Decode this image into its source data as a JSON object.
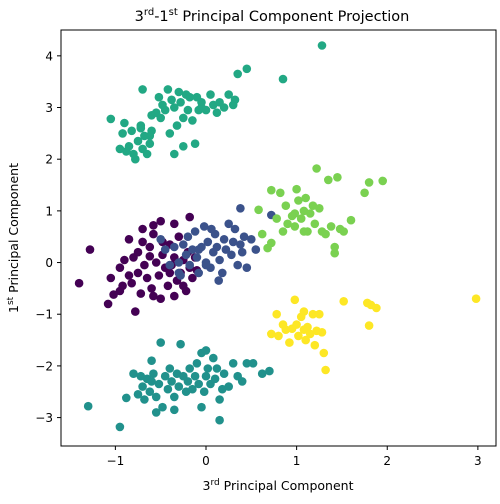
{
  "chart_data": {
    "type": "scatter",
    "title_base1": "3",
    "title_sup1": "rd",
    "title_mid": "-1",
    "title_sup2": "st",
    "title_rest": " Principal Component Projection",
    "xlabel_base": "3",
    "xlabel_sup": "rd",
    "xlabel_rest": " Principal Component",
    "ylabel_base": "1",
    "ylabel_sup": "st",
    "ylabel_rest": " Principal Component",
    "xlim": [
      -1.6,
      3.2
    ],
    "ylim": [
      -3.55,
      4.5
    ],
    "xticks": [
      -1,
      0,
      1,
      2,
      3
    ],
    "xtick_labels": [
      "−1",
      "0",
      "1",
      "2",
      "3"
    ],
    "yticks": [
      -3,
      -2,
      -1,
      0,
      1,
      2,
      3,
      4
    ],
    "ytick_labels": [
      "−3",
      "−2",
      "−1",
      "0",
      "1",
      "2",
      "3",
      "4"
    ],
    "grid": false,
    "series": [
      {
        "color": "#440154",
        "points": [
          [
            -1.28,
            0.25
          ],
          [
            -1.4,
            -0.4
          ],
          [
            -1.05,
            -0.3
          ],
          [
            -0.95,
            -0.55
          ],
          [
            -0.95,
            -0.1
          ],
          [
            -0.9,
            0.05
          ],
          [
            -0.85,
            -0.25
          ],
          [
            -0.82,
            -0.4
          ],
          [
            -0.8,
            0.1
          ],
          [
            -0.75,
            -0.2
          ],
          [
            -0.72,
            -0.6
          ],
          [
            -0.7,
            0.4
          ],
          [
            -0.68,
            -0.05
          ],
          [
            -0.65,
            -0.3
          ],
          [
            -0.62,
            0.3
          ],
          [
            -0.6,
            -0.5
          ],
          [
            -0.58,
            0.55
          ],
          [
            -0.55,
            0.0
          ],
          [
            -0.52,
            -0.25
          ],
          [
            -0.5,
            0.8
          ],
          [
            -0.48,
            0.15
          ],
          [
            -0.45,
            -0.1
          ],
          [
            -0.42,
            -0.45
          ],
          [
            -0.4,
            0.35
          ],
          [
            -0.38,
            -0.05
          ],
          [
            -0.35,
            0.1
          ],
          [
            -0.32,
            -0.35
          ],
          [
            -0.3,
            0.5
          ],
          [
            -0.28,
            -0.2
          ],
          [
            -0.25,
            0.05
          ],
          [
            -0.22,
            -0.55
          ],
          [
            -0.2,
            0.2
          ],
          [
            -0.18,
            -0.1
          ],
          [
            -0.15,
            -0.3
          ],
          [
            -0.12,
            0.1
          ],
          [
            -0.1,
            -0.15
          ],
          [
            -0.35,
            0.75
          ],
          [
            -0.18,
            0.88
          ],
          [
            -0.78,
            -0.95
          ],
          [
            -0.7,
            0.65
          ],
          [
            -0.58,
            -0.65
          ],
          [
            -0.92,
            -0.45
          ],
          [
            -1.08,
            -0.8
          ],
          [
            -0.5,
            -0.7
          ],
          [
            -0.35,
            -0.65
          ],
          [
            -0.62,
            0.12
          ],
          [
            -0.75,
            0.2
          ],
          [
            -0.48,
            0.4
          ],
          [
            -0.85,
            0.45
          ],
          [
            -0.25,
            -0.45
          ],
          [
            -0.4,
            -0.2
          ],
          [
            -0.58,
            0.72
          ],
          [
            -1.02,
            -0.62
          ]
        ]
      },
      {
        "color": "#3b528b",
        "points": [
          [
            -0.45,
            0.25
          ],
          [
            -0.4,
            -0.05
          ],
          [
            -0.35,
            0.3
          ],
          [
            -0.3,
            0.0
          ],
          [
            -0.28,
            -0.25
          ],
          [
            -0.25,
            0.35
          ],
          [
            -0.22,
            0.15
          ],
          [
            -0.2,
            0.5
          ],
          [
            -0.18,
            -0.05
          ],
          [
            -0.15,
            0.25
          ],
          [
            -0.12,
            0.6
          ],
          [
            -0.1,
            0.1
          ],
          [
            -0.08,
            -0.2
          ],
          [
            -0.05,
            0.3
          ],
          [
            -0.02,
            0.7
          ],
          [
            0.0,
            0.0
          ],
          [
            0.02,
            0.4
          ],
          [
            0.05,
            -0.1
          ],
          [
            0.08,
            0.2
          ],
          [
            0.1,
            0.55
          ],
          [
            0.12,
            0.3
          ],
          [
            0.15,
            0.05
          ],
          [
            0.18,
            -0.2
          ],
          [
            0.2,
            0.45
          ],
          [
            0.22,
            0.25
          ],
          [
            0.25,
            0.75
          ],
          [
            0.28,
            0.15
          ],
          [
            0.3,
            0.4
          ],
          [
            0.32,
            0.65
          ],
          [
            0.35,
            -0.05
          ],
          [
            0.38,
            0.35
          ],
          [
            0.4,
            0.2
          ],
          [
            0.42,
            0.5
          ],
          [
            0.45,
            -0.1
          ],
          [
            0.5,
            0.45
          ],
          [
            0.55,
            0.25
          ],
          [
            0.38,
            1.05
          ],
          [
            0.72,
            0.92
          ],
          [
            -0.3,
            -0.2
          ],
          [
            -0.5,
            0.45
          ],
          [
            0.0,
            -0.05
          ],
          [
            0.06,
            0.65
          ],
          [
            -0.08,
            0.25
          ],
          [
            0.14,
            -0.35
          ]
        ]
      },
      {
        "color": "#21918c",
        "points": [
          [
            -1.3,
            -2.78
          ],
          [
            -0.95,
            -3.18
          ],
          [
            -0.8,
            -2.15
          ],
          [
            -0.75,
            -2.55
          ],
          [
            -0.72,
            -2.2
          ],
          [
            -0.7,
            -2.4
          ],
          [
            -0.68,
            -2.65
          ],
          [
            -0.65,
            -2.25
          ],
          [
            -0.62,
            -2.5
          ],
          [
            -0.6,
            -2.3
          ],
          [
            -0.58,
            -2.15
          ],
          [
            -0.55,
            -2.6
          ],
          [
            -0.52,
            -2.35
          ],
          [
            -0.5,
            -1.55
          ],
          [
            -0.48,
            -2.8
          ],
          [
            -0.45,
            -2.2
          ],
          [
            -0.42,
            -2.45
          ],
          [
            -0.4,
            -2.05
          ],
          [
            -0.38,
            -2.3
          ],
          [
            -0.35,
            -2.6
          ],
          [
            -0.32,
            -2.15
          ],
          [
            -0.3,
            -2.4
          ],
          [
            -0.28,
            -1.58
          ],
          [
            -0.25,
            -2.2
          ],
          [
            -0.22,
            -2.5
          ],
          [
            -0.2,
            -2.3
          ],
          [
            -0.18,
            -2.05
          ],
          [
            -0.15,
            -2.45
          ],
          [
            -0.12,
            -2.2
          ],
          [
            -0.1,
            -1.95
          ],
          [
            -0.08,
            -2.35
          ],
          [
            -0.05,
            -1.75
          ],
          [
            -0.02,
            -2.5
          ],
          [
            0.0,
            -2.2
          ],
          [
            0.02,
            -2.05
          ],
          [
            0.05,
            -2.35
          ],
          [
            0.08,
            -1.85
          ],
          [
            0.1,
            -2.25
          ],
          [
            0.12,
            -2.05
          ],
          [
            0.15,
            -2.65
          ],
          [
            0.18,
            -2.45
          ],
          [
            0.2,
            -2.15
          ],
          [
            0.25,
            -2.4
          ],
          [
            0.3,
            -1.95
          ],
          [
            0.35,
            -2.2
          ],
          [
            0.4,
            -2.3
          ],
          [
            0.45,
            -1.95
          ],
          [
            0.52,
            -1.95
          ],
          [
            0.62,
            -2.15
          ],
          [
            0.7,
            -2.1
          ],
          [
            0.15,
            -3.05
          ],
          [
            -0.05,
            -2.8
          ],
          [
            -0.55,
            -2.9
          ],
          [
            -0.35,
            -2.85
          ],
          [
            -0.88,
            -2.62
          ],
          [
            -0.6,
            -1.9
          ],
          [
            0.0,
            -1.7
          ]
        ]
      },
      {
        "color": "#7ad151",
        "points": [
          [
            0.58,
            1.02
          ],
          [
            0.72,
            1.4
          ],
          [
            0.82,
            1.35
          ],
          [
            0.88,
            1.1
          ],
          [
            0.9,
            0.75
          ],
          [
            0.95,
            0.9
          ],
          [
            0.98,
            0.7
          ],
          [
            1.0,
            1.42
          ],
          [
            1.02,
            1.2
          ],
          [
            1.05,
            0.85
          ],
          [
            1.08,
            1.0
          ],
          [
            1.1,
            1.25
          ],
          [
            1.12,
            0.6
          ],
          [
            1.15,
            0.95
          ],
          [
            1.18,
            1.1
          ],
          [
            1.2,
            0.75
          ],
          [
            1.22,
            1.82
          ],
          [
            1.25,
            1.05
          ],
          [
            1.28,
            0.6
          ],
          [
            1.32,
            0.55
          ],
          [
            1.35,
            1.6
          ],
          [
            1.38,
            0.7
          ],
          [
            1.42,
            0.3
          ],
          [
            1.45,
            1.65
          ],
          [
            1.48,
            0.65
          ],
          [
            1.52,
            0.6
          ],
          [
            1.6,
            0.82
          ],
          [
            1.75,
            1.35
          ],
          [
            1.8,
            1.55
          ],
          [
            1.95,
            1.58
          ],
          [
            0.68,
            0.28
          ],
          [
            0.72,
            0.38
          ],
          [
            0.85,
            0.6
          ],
          [
            0.62,
            0.55
          ],
          [
            0.98,
            0.95
          ],
          [
            0.78,
            0.85
          ],
          [
            1.42,
            0.18
          ],
          [
            1.08,
            0.6
          ]
        ]
      },
      {
        "color": "#fde725",
        "points": [
          [
            0.78,
            -1.0
          ],
          [
            0.8,
            -1.42
          ],
          [
            0.85,
            -1.2
          ],
          [
            0.88,
            -1.3
          ],
          [
            0.92,
            -1.55
          ],
          [
            0.95,
            -1.28
          ],
          [
            0.98,
            -0.72
          ],
          [
            1.0,
            -1.2
          ],
          [
            1.02,
            -1.42
          ],
          [
            1.05,
            -1.05
          ],
          [
            1.08,
            -1.3
          ],
          [
            1.1,
            -1.5
          ],
          [
            1.12,
            -1.25
          ],
          [
            1.15,
            -1.38
          ],
          [
            1.18,
            -1.0
          ],
          [
            1.2,
            -1.6
          ],
          [
            1.22,
            -1.32
          ],
          [
            1.25,
            -1.0
          ],
          [
            1.28,
            -1.35
          ],
          [
            1.3,
            -1.75
          ],
          [
            1.32,
            -2.08
          ],
          [
            1.52,
            -0.75
          ],
          [
            1.78,
            -0.78
          ],
          [
            1.8,
            -1.22
          ],
          [
            1.82,
            -0.82
          ],
          [
            1.88,
            -0.88
          ],
          [
            2.98,
            -0.7
          ],
          [
            0.72,
            -1.38
          ],
          [
            1.08,
            -0.95
          ]
        ]
      },
      {
        "color": "#22a884",
        "points": [
          [
            -1.05,
            2.78
          ],
          [
            -0.95,
            2.2
          ],
          [
            -0.92,
            2.5
          ],
          [
            -0.88,
            2.15
          ],
          [
            -0.85,
            2.25
          ],
          [
            -0.82,
            2.55
          ],
          [
            -0.8,
            2.1
          ],
          [
            -0.78,
            2.0
          ],
          [
            -0.75,
            2.35
          ],
          [
            -0.72,
            2.65
          ],
          [
            -0.7,
            2.2
          ],
          [
            -0.68,
            2.45
          ],
          [
            -0.65,
            2.1
          ],
          [
            -0.62,
            2.3
          ],
          [
            -0.6,
            2.55
          ],
          [
            -0.55,
            2.9
          ],
          [
            -0.52,
            3.2
          ],
          [
            -0.5,
            2.8
          ],
          [
            -0.48,
            3.05
          ],
          [
            -0.45,
            2.95
          ],
          [
            -0.42,
            3.35
          ],
          [
            -0.4,
            2.5
          ],
          [
            -0.38,
            3.15
          ],
          [
            -0.35,
            3.0
          ],
          [
            -0.32,
            2.65
          ],
          [
            -0.3,
            3.3
          ],
          [
            -0.28,
            3.1
          ],
          [
            -0.25,
            2.8
          ],
          [
            -0.22,
            3.25
          ],
          [
            -0.2,
            2.95
          ],
          [
            -0.18,
            3.2
          ],
          [
            -0.15,
            2.75
          ],
          [
            -0.12,
            2.3
          ],
          [
            -0.1,
            3.2
          ],
          [
            -0.08,
            2.95
          ],
          [
            -0.05,
            3.1
          ],
          [
            0.0,
            2.95
          ],
          [
            0.05,
            3.25
          ],
          [
            0.08,
            3.05
          ],
          [
            0.12,
            2.9
          ],
          [
            0.15,
            3.1
          ],
          [
            0.2,
            3.0
          ],
          [
            0.25,
            3.25
          ],
          [
            0.3,
            3.05
          ],
          [
            0.35,
            3.65
          ],
          [
            0.45,
            3.75
          ],
          [
            0.85,
            3.55
          ],
          [
            1.28,
            4.2
          ],
          [
            -0.7,
            3.35
          ],
          [
            -0.72,
            2.6
          ],
          [
            -0.62,
            2.45
          ],
          [
            -0.35,
            2.1
          ],
          [
            -0.9,
            2.7
          ],
          [
            -0.6,
            2.85
          ],
          [
            -0.25,
            2.25
          ],
          [
            -0.05,
            3.0
          ],
          [
            0.32,
            3.15
          ]
        ]
      }
    ]
  }
}
